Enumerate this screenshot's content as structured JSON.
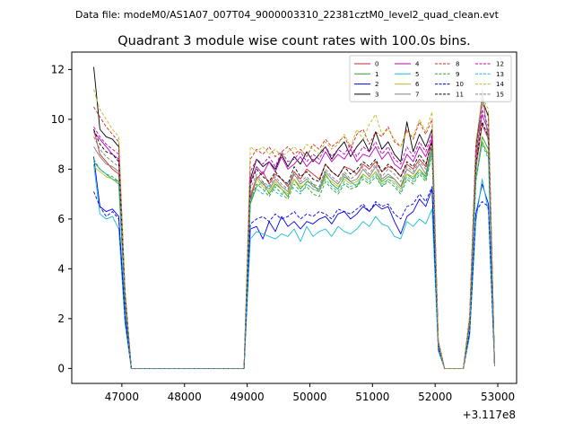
{
  "header": {
    "data_file": "Data file: modeM0/AS1A07_007T04_9000003310_22381cztM0_level2_quad_clean.evt",
    "title": "Quadrant 3 module wise count rates with 100.0s bins."
  },
  "chart_data": {
    "type": "line",
    "x_offset_label": "+3.117e8",
    "xlim": [
      46200,
      53300
    ],
    "ylim": [
      -0.6,
      12.7
    ],
    "x_ticks": [
      47000,
      48000,
      49000,
      50000,
      51000,
      52000,
      53000
    ],
    "x_tick_labels": [
      "47000",
      "48000",
      "49000",
      "50000",
      "51000",
      "52000",
      "53000"
    ],
    "y_ticks": [
      0,
      2,
      4,
      6,
      8,
      10,
      12
    ],
    "y_tick_labels": [
      "0",
      "2",
      "4",
      "6",
      "8",
      "10",
      "12"
    ],
    "legend_placement": "top-right",
    "legend_columns": 4,
    "x": [
      46550,
      46650,
      46750,
      46850,
      46950,
      47050,
      47150,
      47250,
      47350,
      47450,
      47550,
      47650,
      47750,
      47850,
      47950,
      48050,
      48150,
      48250,
      48350,
      48450,
      48550,
      48650,
      48750,
      48850,
      48950,
      49050,
      49150,
      49250,
      49350,
      49450,
      49550,
      49650,
      49750,
      49850,
      49950,
      50050,
      50150,
      50250,
      50350,
      50450,
      50550,
      50650,
      50750,
      50850,
      50950,
      51050,
      51150,
      51250,
      51350,
      51450,
      51550,
      51650,
      51750,
      51850,
      51950,
      52050,
      52150,
      52250,
      52350,
      52450,
      52550,
      52650,
      52750,
      52850,
      52950
    ],
    "series": [
      {
        "name": "0",
        "color": "#d62728",
        "dashed": false,
        "values": [
          9.6,
          8.6,
          8.3,
          8.0,
          7.8,
          2.8,
          0,
          0,
          0,
          0,
          0,
          0,
          0,
          0,
          0,
          0,
          0,
          0,
          0,
          0,
          0,
          0,
          0,
          0,
          0,
          6.8,
          7.6,
          7.9,
          7.4,
          7.8,
          7.6,
          7.3,
          7.9,
          7.6,
          8.0,
          7.8,
          7.6,
          8.2,
          7.9,
          7.7,
          8.1,
          8.0,
          7.8,
          8.2,
          8.0,
          8.3,
          7.9,
          8.1,
          8.0,
          7.7,
          8.2,
          8.0,
          8.4,
          8.1,
          9.3,
          1.0,
          0,
          0,
          0,
          0,
          1.8,
          8.0,
          9.8,
          9.2,
          0.1
        ]
      },
      {
        "name": "1",
        "color": "#2ca02c",
        "dashed": false,
        "values": [
          8.3,
          8.0,
          7.8,
          7.6,
          7.5,
          2.6,
          0,
          0,
          0,
          0,
          0,
          0,
          0,
          0,
          0,
          0,
          0,
          0,
          0,
          0,
          0,
          0,
          0,
          0,
          0,
          6.6,
          7.3,
          7.5,
          7.0,
          7.4,
          7.2,
          6.9,
          7.6,
          7.2,
          7.5,
          7.4,
          7.1,
          7.8,
          7.4,
          7.2,
          7.7,
          7.5,
          7.3,
          7.8,
          7.6,
          7.9,
          7.5,
          7.7,
          7.6,
          7.3,
          7.8,
          7.6,
          8.0,
          7.7,
          8.9,
          0.9,
          0,
          0,
          0,
          0,
          1.7,
          7.6,
          9.3,
          8.8,
          0.1
        ]
      },
      {
        "name": "2",
        "color": "#0000ee",
        "dashed": false,
        "values": [
          8.5,
          6.5,
          6.3,
          6.4,
          6.1,
          2.1,
          0,
          0,
          0,
          0,
          0,
          0,
          0,
          0,
          0,
          0,
          0,
          0,
          0,
          0,
          0,
          0,
          0,
          0,
          0,
          5.6,
          5.7,
          5.2,
          5.9,
          5.5,
          6.1,
          5.7,
          5.9,
          5.6,
          5.9,
          5.8,
          6.0,
          6.1,
          5.8,
          6.2,
          6.3,
          6.0,
          6.2,
          6.5,
          6.3,
          6.6,
          6.4,
          6.5,
          5.9,
          5.4,
          6.1,
          6.3,
          6.8,
          6.5,
          7.2,
          0.8,
          0,
          0,
          0,
          0,
          1.4,
          6.2,
          7.4,
          6.6,
          0.1
        ]
      },
      {
        "name": "3",
        "color": "#000000",
        "dashed": false,
        "values": [
          12.1,
          9.6,
          9.3,
          9.2,
          8.9,
          3.1,
          0,
          0,
          0,
          0,
          0,
          0,
          0,
          0,
          0,
          0,
          0,
          0,
          0,
          0,
          0,
          0,
          0,
          0,
          0,
          7.6,
          8.4,
          8.1,
          8.3,
          8.0,
          8.6,
          8.1,
          8.5,
          8.2,
          8.7,
          8.3,
          8.6,
          8.9,
          8.4,
          8.8,
          9.1,
          8.5,
          8.9,
          9.2,
          8.7,
          9.5,
          8.8,
          9.1,
          8.6,
          8.3,
          9.9,
          8.7,
          9.4,
          8.9,
          9.6,
          1.1,
          0,
          0,
          0,
          0,
          2.0,
          8.9,
          10.8,
          10.1,
          0.1
        ]
      },
      {
        "name": "4",
        "color": "#bf00bf",
        "dashed": false,
        "values": [
          9.5,
          9.2,
          8.9,
          8.6,
          8.4,
          2.9,
          0,
          0,
          0,
          0,
          0,
          0,
          0,
          0,
          0,
          0,
          0,
          0,
          0,
          0,
          0,
          0,
          0,
          0,
          0,
          7.5,
          8.1,
          7.8,
          8.3,
          7.9,
          8.5,
          8.0,
          8.2,
          8.5,
          8.1,
          8.4,
          8.2,
          8.7,
          8.3,
          8.6,
          8.4,
          8.8,
          8.3,
          8.6,
          8.5,
          8.9,
          8.4,
          8.7,
          8.2,
          8.0,
          8.6,
          8.3,
          8.9,
          8.5,
          9.2,
          1.0,
          0,
          0,
          0,
          0,
          1.9,
          8.5,
          10.2,
          9.5,
          0.1
        ]
      },
      {
        "name": "5",
        "color": "#17becf",
        "dashed": false,
        "values": [
          8.2,
          6.2,
          6.0,
          6.1,
          5.6,
          1.8,
          0,
          0,
          0,
          0,
          0,
          0,
          0,
          0,
          0,
          0,
          0,
          0,
          0,
          0,
          0,
          0,
          0,
          0,
          0,
          5.2,
          5.5,
          5.4,
          5.3,
          5.2,
          5.4,
          5.3,
          5.6,
          5.1,
          5.7,
          5.3,
          5.5,
          5.6,
          5.3,
          5.7,
          5.5,
          5.4,
          5.6,
          5.9,
          5.7,
          6.1,
          5.8,
          5.7,
          5.3,
          5.2,
          5.9,
          5.7,
          6.0,
          5.8,
          6.4,
          0.7,
          0,
          0,
          0,
          0,
          1.3,
          5.9,
          7.6,
          6.3,
          0.1
        ]
      },
      {
        "name": "6",
        "color": "#bcbd22",
        "dashed": false,
        "values": [
          8.1,
          7.9,
          7.7,
          7.6,
          7.4,
          2.6,
          0,
          0,
          0,
          0,
          0,
          0,
          0,
          0,
          0,
          0,
          0,
          0,
          0,
          0,
          0,
          0,
          0,
          0,
          0,
          7.0,
          7.6,
          7.3,
          7.1,
          7.5,
          7.2,
          7.0,
          7.6,
          7.3,
          7.4,
          7.2,
          7.1,
          7.7,
          7.5,
          7.3,
          7.6,
          7.4,
          7.5,
          7.8,
          7.6,
          7.9,
          7.4,
          7.6,
          7.5,
          7.2,
          7.8,
          7.7,
          8.0,
          7.6,
          8.7,
          0.9,
          0,
          0,
          0,
          0,
          1.7,
          7.7,
          9.1,
          8.6,
          0.1
        ]
      },
      {
        "name": "7",
        "color": "#7f7f7f",
        "dashed": false,
        "values": [
          8.9,
          8.5,
          8.2,
          8.1,
          7.9,
          2.7,
          0,
          0,
          0,
          0,
          0,
          0,
          0,
          0,
          0,
          0,
          0,
          0,
          0,
          0,
          0,
          0,
          0,
          0,
          0,
          6.9,
          7.7,
          7.4,
          7.2,
          7.6,
          7.3,
          7.1,
          7.8,
          7.4,
          7.6,
          7.3,
          7.2,
          7.9,
          7.6,
          7.4,
          7.8,
          7.5,
          7.6,
          8.0,
          7.7,
          8.1,
          7.6,
          7.8,
          7.6,
          7.3,
          8.0,
          7.8,
          8.2,
          7.8,
          9.0,
          0.9,
          0,
          0,
          0,
          0,
          1.8,
          7.8,
          11.2,
          9.0,
          0.1
        ]
      },
      {
        "name": "8",
        "color": "#d62728",
        "dashed": true,
        "values": [
          10.5,
          10.1,
          9.7,
          9.4,
          9.1,
          3.1,
          0,
          0,
          0,
          0,
          0,
          0,
          0,
          0,
          0,
          0,
          0,
          0,
          0,
          0,
          0,
          0,
          0,
          0,
          0,
          8.4,
          8.8,
          8.6,
          8.9,
          8.5,
          8.7,
          8.9,
          8.6,
          8.8,
          8.5,
          9.0,
          8.8,
          9.2,
          8.9,
          9.1,
          9.3,
          8.8,
          9.4,
          9.6,
          9.0,
          9.5,
          9.3,
          9.7,
          9.1,
          8.9,
          9.6,
          9.2,
          9.9,
          9.4,
          10.0,
          1.1,
          0,
          0,
          0,
          0,
          2.1,
          9.0,
          10.6,
          10.2,
          0.1
        ]
      },
      {
        "name": "9",
        "color": "#2ca02c",
        "dashed": true,
        "values": [
          8.4,
          8.0,
          7.8,
          7.7,
          7.5,
          2.6,
          0,
          0,
          0,
          0,
          0,
          0,
          0,
          0,
          0,
          0,
          0,
          0,
          0,
          0,
          0,
          0,
          0,
          0,
          0,
          6.7,
          7.4,
          7.2,
          6.9,
          7.3,
          7.0,
          6.8,
          7.4,
          7.1,
          7.3,
          7.0,
          6.9,
          7.5,
          7.2,
          7.0,
          7.4,
          7.2,
          7.3,
          7.6,
          7.4,
          7.7,
          7.3,
          7.5,
          7.3,
          7.0,
          7.6,
          7.4,
          7.8,
          7.5,
          8.6,
          0.9,
          0,
          0,
          0,
          0,
          1.7,
          7.5,
          9.1,
          8.5,
          0.1
        ]
      },
      {
        "name": "10",
        "color": "#0000ee",
        "dashed": true,
        "values": [
          7.1,
          6.5,
          6.1,
          6.3,
          6.0,
          2.0,
          0,
          0,
          0,
          0,
          0,
          0,
          0,
          0,
          0,
          0,
          0,
          0,
          0,
          0,
          0,
          0,
          0,
          0,
          0,
          5.8,
          6.0,
          6.1,
          5.9,
          6.2,
          6.0,
          6.1,
          6.3,
          6.0,
          6.2,
          6.1,
          6.3,
          6.2,
          6.0,
          6.4,
          6.3,
          6.2,
          6.4,
          6.6,
          6.3,
          6.7,
          6.5,
          6.6,
          6.2,
          6.0,
          6.5,
          6.6,
          7.0,
          6.7,
          7.3,
          0.8,
          0,
          0,
          0,
          0,
          1.4,
          6.3,
          6.7,
          6.5,
          0.1
        ]
      },
      {
        "name": "11",
        "color": "#000000",
        "dashed": true,
        "values": [
          9.6,
          9.0,
          8.7,
          8.6,
          8.3,
          2.8,
          0,
          0,
          0,
          0,
          0,
          0,
          0,
          0,
          0,
          0,
          0,
          0,
          0,
          0,
          0,
          0,
          0,
          0,
          0,
          7.4,
          8.0,
          7.7,
          7.5,
          7.9,
          7.6,
          7.4,
          8.1,
          7.7,
          7.9,
          7.6,
          7.5,
          8.2,
          7.9,
          7.7,
          8.1,
          7.8,
          8.0,
          8.3,
          8.1,
          8.4,
          7.9,
          8.2,
          8.0,
          7.7,
          8.3,
          8.1,
          8.6,
          8.2,
          9.1,
          1.0,
          0,
          0,
          0,
          0,
          1.9,
          8.2,
          9.9,
          9.3,
          0.1
        ]
      },
      {
        "name": "12",
        "color": "#bf00bf",
        "dashed": true,
        "values": [
          9.7,
          9.3,
          9.0,
          8.8,
          8.6,
          2.9,
          0,
          0,
          0,
          0,
          0,
          0,
          0,
          0,
          0,
          0,
          0,
          0,
          0,
          0,
          0,
          0,
          0,
          0,
          0,
          7.9,
          8.4,
          8.2,
          8.5,
          8.1,
          8.7,
          8.3,
          8.4,
          8.7,
          8.3,
          8.6,
          8.4,
          8.9,
          8.5,
          8.8,
          8.6,
          9.0,
          8.5,
          8.9,
          8.7,
          9.1,
          8.6,
          8.9,
          8.4,
          8.2,
          8.9,
          8.5,
          9.1,
          8.7,
          9.4,
          1.0,
          0,
          0,
          0,
          0,
          1.9,
          8.7,
          10.4,
          9.7,
          0.1
        ]
      },
      {
        "name": "13",
        "color": "#17becf",
        "dashed": true,
        "values": [
          8.3,
          8.0,
          7.8,
          7.6,
          7.4,
          2.6,
          0,
          0,
          0,
          0,
          0,
          0,
          0,
          0,
          0,
          0,
          0,
          0,
          0,
          0,
          0,
          0,
          0,
          0,
          0,
          6.8,
          7.2,
          7.0,
          7.4,
          7.1,
          6.9,
          7.5,
          7.2,
          7.0,
          7.4,
          7.2,
          7.1,
          7.6,
          7.3,
          7.1,
          7.5,
          7.3,
          7.4,
          7.7,
          7.5,
          7.8,
          7.3,
          7.6,
          7.4,
          7.1,
          7.7,
          7.5,
          7.9,
          7.6,
          8.7,
          0.9,
          0,
          0,
          0,
          0,
          1.7,
          7.6,
          9.0,
          8.4,
          0.1
        ]
      },
      {
        "name": "14",
        "color": "#bcbd22",
        "dashed": true,
        "values": [
          11.2,
          10.4,
          10.0,
          9.6,
          9.3,
          3.2,
          0,
          0,
          0,
          0,
          0,
          0,
          0,
          0,
          0,
          0,
          0,
          0,
          0,
          0,
          0,
          0,
          0,
          0,
          0,
          8.9,
          8.7,
          8.9,
          8.6,
          8.8,
          8.5,
          8.7,
          8.9,
          8.6,
          9.0,
          8.8,
          8.6,
          9.1,
          8.8,
          9.0,
          9.4,
          8.9,
          9.6,
          9.2,
          9.8,
          10.2,
          9.4,
          9.6,
          9.2,
          8.9,
          9.5,
          9.3,
          10.0,
          9.5,
          10.3,
          1.1,
          0,
          0,
          0,
          0,
          2.1,
          9.1,
          10.9,
          10.4,
          0.1
        ]
      },
      {
        "name": "15",
        "color": "#7f7f7f",
        "dashed": true,
        "values": [
          9.3,
          8.8,
          8.5,
          8.3,
          8.1,
          2.8,
          0,
          0,
          0,
          0,
          0,
          0,
          0,
          0,
          0,
          0,
          0,
          0,
          0,
          0,
          0,
          0,
          0,
          0,
          0,
          7.2,
          7.8,
          7.5,
          7.3,
          7.7,
          7.4,
          7.2,
          7.9,
          7.5,
          7.7,
          7.4,
          7.3,
          8.0,
          7.7,
          7.5,
          7.9,
          7.6,
          7.8,
          8.1,
          7.8,
          8.2,
          7.7,
          8.0,
          7.8,
          7.5,
          8.1,
          7.9,
          8.3,
          8.0,
          8.9,
          0.9,
          0,
          0,
          0,
          0,
          1.8,
          8.0,
          11.1,
          9.2,
          0.1
        ]
      }
    ]
  }
}
